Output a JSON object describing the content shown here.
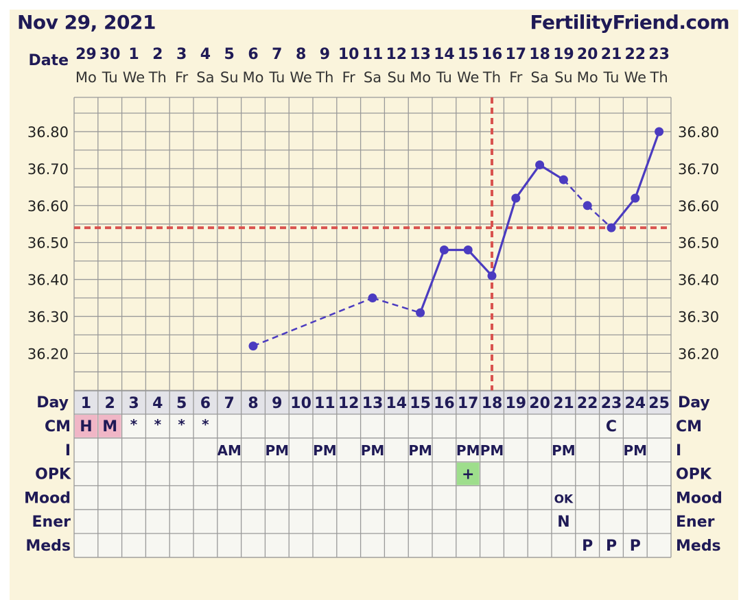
{
  "header": {
    "date_text": "Nov 29, 2021",
    "site_text": "FertilityFriend.com"
  },
  "labels": {
    "date": "Date",
    "day": "Day",
    "cm": "CM",
    "intercourse": "I",
    "opk": "OPK",
    "mood": "Mood",
    "energy": "Ener",
    "meds": "Meds"
  },
  "colors": {
    "background": "#faf4dc",
    "grid": "#999999",
    "line": "#4b3bc0",
    "coverline": "#d9534f",
    "text": "#1f1a56",
    "day_row": "#e3e3e8",
    "cm_highlight": "#f0b6c6",
    "opk_positive": "#9ede8c",
    "rows_bg": "#f7f7f2"
  },
  "chart_data": {
    "type": "line",
    "dates": [
      "29",
      "30",
      "1",
      "2",
      "3",
      "4",
      "5",
      "6",
      "7",
      "8",
      "9",
      "10",
      "11",
      "12",
      "13",
      "14",
      "15",
      "16",
      "17",
      "18",
      "19",
      "20",
      "21",
      "22",
      "23"
    ],
    "weekdays": [
      "Mo",
      "Tu",
      "We",
      "Th",
      "Fr",
      "Sa",
      "Su",
      "Mo",
      "Tu",
      "We",
      "Th",
      "Fr",
      "Sa",
      "Su",
      "Mo",
      "Tu",
      "We",
      "Th",
      "Fr",
      "Sa",
      "Su",
      "Mo",
      "Tu",
      "We",
      "Th"
    ],
    "cycle_days": [
      1,
      2,
      3,
      4,
      5,
      6,
      7,
      8,
      9,
      10,
      11,
      12,
      13,
      14,
      15,
      16,
      17,
      18,
      19,
      20,
      21,
      22,
      23,
      24,
      25
    ],
    "temperatures": [
      null,
      null,
      null,
      null,
      null,
      null,
      null,
      36.22,
      null,
      null,
      null,
      null,
      36.35,
      null,
      36.31,
      36.48,
      36.48,
      36.41,
      36.62,
      36.71,
      36.67,
      36.6,
      36.54,
      36.62,
      36.8
    ],
    "dashed_segments": [
      [
        8,
        13
      ],
      [
        13,
        15
      ],
      [
        21,
        22
      ],
      [
        22,
        23
      ]
    ],
    "ylim": [
      36.1,
      36.9
    ],
    "y_ticks": [
      "36.20",
      "36.30",
      "36.40",
      "36.50",
      "36.60",
      "36.70",
      "36.80"
    ],
    "coverline": 36.54,
    "ovulation_day": 18
  },
  "rows": {
    "cm": [
      "H",
      "M",
      "*",
      "*",
      "*",
      "*",
      "",
      "",
      "",
      "",
      "",
      "",
      "",
      "",
      "",
      "",
      "",
      "",
      "",
      "",
      "",
      "",
      "C",
      "",
      ""
    ],
    "cm_highlight": [
      true,
      true,
      false,
      false,
      false,
      false,
      false,
      false,
      false,
      false,
      false,
      false,
      false,
      false,
      false,
      false,
      false,
      false,
      false,
      false,
      false,
      false,
      false,
      false,
      false
    ],
    "intercourse": [
      "",
      "",
      "",
      "",
      "",
      "",
      "AM",
      "",
      "PM",
      "",
      "PM",
      "",
      "PM",
      "",
      "PM",
      "",
      "PM",
      "PM",
      "",
      "",
      "PM",
      "",
      "",
      "PM",
      ""
    ],
    "opk": [
      "",
      "",
      "",
      "",
      "",
      "",
      "",
      "",
      "",
      "",
      "",
      "",
      "",
      "",
      "",
      "",
      "+",
      "",
      "",
      "",
      "",
      "",
      "",
      "",
      ""
    ],
    "mood": [
      "",
      "",
      "",
      "",
      "",
      "",
      "",
      "",
      "",
      "",
      "",
      "",
      "",
      "",
      "",
      "",
      "",
      "",
      "",
      "",
      "OK",
      "",
      "",
      "",
      ""
    ],
    "energy": [
      "",
      "",
      "",
      "",
      "",
      "",
      "",
      "",
      "",
      "",
      "",
      "",
      "",
      "",
      "",
      "",
      "",
      "",
      "",
      "",
      "N",
      "",
      "",
      "",
      ""
    ],
    "meds": [
      "",
      "",
      "",
      "",
      "",
      "",
      "",
      "",
      "",
      "",
      "",
      "",
      "",
      "",
      "",
      "",
      "",
      "",
      "",
      "",
      "",
      "P",
      "P",
      "P",
      ""
    ]
  }
}
